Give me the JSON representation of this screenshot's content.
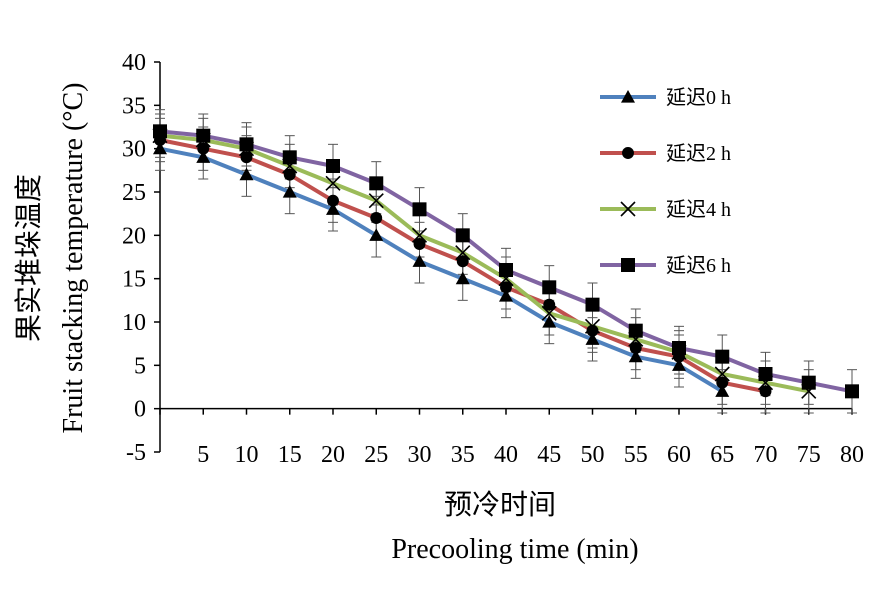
{
  "chart_data": {
    "type": "line",
    "xlabel_cn": "预冷时间",
    "xlabel_en": "Precooling time (min)",
    "ylabel_cn": "果实堆垛温度",
    "ylabel_en": "Fruit stacking temperature (°C)",
    "x": [
      0,
      5,
      10,
      15,
      20,
      25,
      30,
      35,
      40,
      45,
      50,
      55,
      60,
      65,
      70,
      75,
      80
    ],
    "xticks": [
      "5",
      "10",
      "15",
      "20",
      "25",
      "30",
      "35",
      "40",
      "45",
      "50",
      "55",
      "60",
      "65",
      "70",
      "75",
      "80"
    ],
    "yticks": [
      "-5",
      "0",
      "5",
      "10",
      "15",
      "20",
      "25",
      "30",
      "35",
      "40"
    ],
    "ylim": [
      -5,
      40
    ],
    "xlim": [
      0,
      80
    ],
    "legend_position": "top-right",
    "error_bar": 2.5,
    "series": [
      {
        "name": "延迟0 h",
        "color": "#4f81bd",
        "marker": "triangle",
        "x": [
          0,
          5,
          10,
          15,
          20,
          25,
          30,
          35,
          40,
          45,
          50,
          55,
          60,
          65
        ],
        "values": [
          30,
          29,
          27,
          25,
          23,
          20,
          17,
          15,
          13,
          10,
          8,
          6,
          5,
          2
        ]
      },
      {
        "name": "延迟2 h",
        "color": "#c0504d",
        "marker": "circle",
        "x": [
          0,
          5,
          10,
          15,
          20,
          25,
          30,
          35,
          40,
          45,
          50,
          55,
          60,
          65,
          70
        ],
        "values": [
          31,
          30,
          29,
          27,
          24,
          22,
          19,
          17,
          14,
          12,
          9,
          7,
          6,
          3,
          2
        ]
      },
      {
        "name": "延迟4 h",
        "color": "#9bbb59",
        "marker": "x",
        "x": [
          0,
          5,
          10,
          15,
          20,
          25,
          30,
          35,
          40,
          45,
          50,
          55,
          60,
          65,
          70,
          75
        ],
        "values": [
          31.5,
          31,
          30,
          28,
          26,
          24,
          20,
          18,
          15,
          11,
          9.5,
          8,
          6.5,
          4,
          3,
          2
        ]
      },
      {
        "name": "延迟6 h",
        "color": "#8064a2",
        "marker": "square",
        "x": [
          0,
          5,
          10,
          15,
          20,
          25,
          30,
          35,
          40,
          45,
          50,
          55,
          60,
          65,
          70,
          75,
          80
        ],
        "values": [
          32,
          31.5,
          30.5,
          29,
          28,
          26,
          23,
          20,
          16,
          14,
          12,
          9,
          7,
          6,
          4,
          3,
          2
        ]
      }
    ]
  }
}
